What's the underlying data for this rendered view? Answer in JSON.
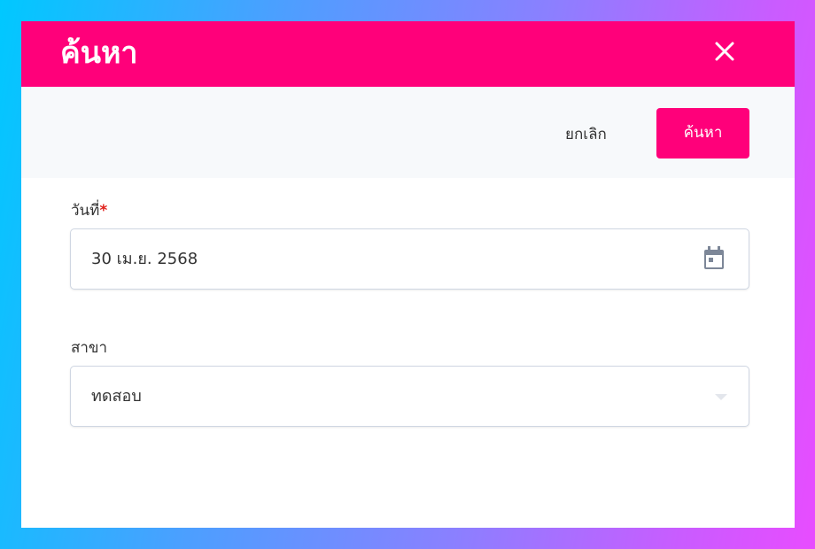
{
  "dialog": {
    "title": "ค้นหา",
    "close_icon": "close-icon",
    "header_color": "#ff007a"
  },
  "toolbar": {
    "cancel_label": "ยกเลิก",
    "search_label": "ค้นหา"
  },
  "form": {
    "date": {
      "label": "วันที่",
      "required_mark": "*",
      "value": "30 เม.ย. 2568",
      "icon": "calendar-icon"
    },
    "branch": {
      "label": "สาขา",
      "value": "ทดสอบ",
      "icon": "chevron-down-icon"
    }
  }
}
